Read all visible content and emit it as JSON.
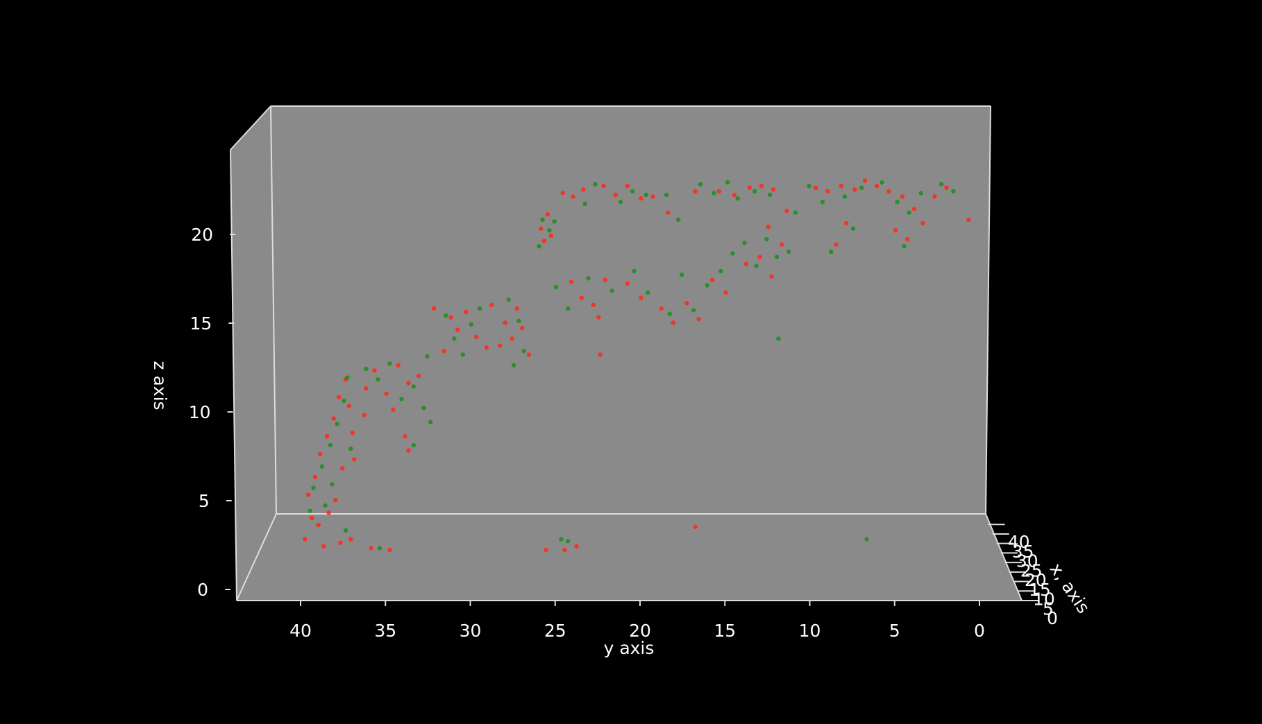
{
  "chart_data": {
    "type": "scatter",
    "projection": "3d",
    "title": "",
    "xlabel": "x, axis",
    "ylabel": "y axis",
    "zlabel": "z axis",
    "xlim": [
      0,
      43
    ],
    "ylim": [
      0,
      44
    ],
    "zlim": [
      0,
      24
    ],
    "x_ticks": [
      "0",
      "5",
      "10",
      "15",
      "20",
      "25",
      "30",
      "35",
      "40"
    ],
    "y_ticks": [
      "40",
      "35",
      "30",
      "25",
      "20",
      "15",
      "10",
      "5",
      "0"
    ],
    "z_ticks": [
      "0",
      "5",
      "10",
      "15",
      "20"
    ],
    "grid": false,
    "background": "#000000",
    "pane_color": "#8a8a8a",
    "edge_color": "#dddddd",
    "series": [
      {
        "color": "#ff2a1a",
        "points": [
          [
            20,
            39.2,
            5.5
          ],
          [
            20,
            38.8,
            6.5
          ],
          [
            20,
            38.5,
            7.8
          ],
          [
            20,
            38.1,
            8.8
          ],
          [
            20,
            37.7,
            9.8
          ],
          [
            20,
            37.4,
            11.0
          ],
          [
            20,
            37.0,
            12.0
          ],
          [
            20,
            36.8,
            10.5
          ],
          [
            20,
            37.2,
            7.0
          ],
          [
            20,
            37.6,
            5.2
          ],
          [
            20,
            38.0,
            4.5
          ],
          [
            20,
            38.6,
            3.8
          ],
          [
            20,
            39.0,
            4.2
          ],
          [
            20,
            36.6,
            9.0
          ],
          [
            20,
            36.5,
            7.5
          ],
          [
            20,
            39.4,
            3.0
          ],
          [
            20,
            38.3,
            2.6
          ],
          [
            20,
            37.3,
            2.8
          ],
          [
            20,
            36.7,
            3.0
          ],
          [
            20,
            35.5,
            2.5
          ],
          [
            20,
            34.4,
            2.4
          ],
          [
            20,
            35.8,
            11.5
          ],
          [
            20,
            35.3,
            12.5
          ],
          [
            20,
            34.6,
            11.2
          ],
          [
            20,
            33.9,
            12.8
          ],
          [
            20,
            33.3,
            11.8
          ],
          [
            20,
            32.7,
            12.2
          ],
          [
            20,
            34.2,
            10.3
          ],
          [
            20,
            33.5,
            8.8
          ],
          [
            20,
            35.9,
            10.0
          ],
          [
            20,
            30.8,
            15.5
          ],
          [
            20,
            30.4,
            14.8
          ],
          [
            20,
            29.9,
            15.8
          ],
          [
            20,
            29.3,
            14.4
          ],
          [
            20,
            31.2,
            13.6
          ],
          [
            20,
            28.7,
            13.8
          ],
          [
            20,
            27.6,
            15.2
          ],
          [
            20,
            27.2,
            14.3
          ],
          [
            20,
            26.9,
            16.0
          ],
          [
            20,
            26.6,
            14.9
          ],
          [
            20,
            27.9,
            13.9
          ],
          [
            20,
            26.2,
            13.4
          ],
          [
            20,
            25.5,
            20.5
          ],
          [
            20,
            25.1,
            21.3
          ],
          [
            20,
            24.9,
            20.1
          ],
          [
            20,
            25.3,
            19.8
          ],
          [
            20,
            24.2,
            22.5
          ],
          [
            20,
            23.6,
            22.3
          ],
          [
            20,
            23.0,
            22.7
          ],
          [
            20,
            21.8,
            22.9
          ],
          [
            20,
            21.1,
            22.4
          ],
          [
            20,
            20.4,
            22.9
          ],
          [
            20,
            19.6,
            22.2
          ],
          [
            20,
            18.9,
            22.3
          ],
          [
            20,
            18.0,
            21.4
          ],
          [
            20,
            16.4,
            22.6
          ],
          [
            20,
            15.0,
            22.6
          ],
          [
            20,
            14.1,
            22.4
          ],
          [
            20,
            13.2,
            22.8
          ],
          [
            20,
            12.5,
            22.9
          ],
          [
            20,
            11.8,
            22.7
          ],
          [
            20,
            11.0,
            21.5
          ],
          [
            20,
            9.3,
            22.8
          ],
          [
            20,
            8.6,
            22.6
          ],
          [
            20,
            7.8,
            22.9
          ],
          [
            20,
            7.0,
            22.7
          ],
          [
            20,
            6.4,
            23.2
          ],
          [
            20,
            5.7,
            22.9
          ],
          [
            20,
            5.0,
            22.6
          ],
          [
            20,
            4.2,
            22.3
          ],
          [
            20,
            3.5,
            21.6
          ],
          [
            20,
            3.0,
            20.8
          ],
          [
            20,
            2.3,
            22.3
          ],
          [
            20,
            1.6,
            22.8
          ],
          [
            20,
            0.3,
            21.0
          ],
          [
            20,
            4.6,
            20.4
          ],
          [
            20,
            3.9,
            19.9
          ],
          [
            20,
            7.5,
            20.8
          ],
          [
            20,
            8.1,
            19.6
          ],
          [
            20,
            23.7,
            17.5
          ],
          [
            20,
            23.1,
            16.6
          ],
          [
            20,
            22.4,
            16.2
          ],
          [
            20,
            21.7,
            17.6
          ],
          [
            20,
            20.4,
            17.4
          ],
          [
            20,
            19.6,
            16.6
          ],
          [
            20,
            18.4,
            16.0
          ],
          [
            20,
            17.7,
            15.2
          ],
          [
            20,
            16.9,
            16.3
          ],
          [
            20,
            16.2,
            15.4
          ],
          [
            20,
            15.4,
            17.6
          ],
          [
            20,
            14.6,
            16.9
          ],
          [
            20,
            13.4,
            18.5
          ],
          [
            20,
            12.6,
            18.9
          ],
          [
            20,
            11.9,
            17.8
          ],
          [
            20,
            11.3,
            19.6
          ],
          [
            20,
            12.1,
            20.6
          ],
          [
            20,
            22.1,
            15.5
          ],
          [
            20,
            22.0,
            13.4
          ],
          [
            20,
            24.1,
            2.4
          ],
          [
            20,
            23.4,
            2.6
          ],
          [
            20,
            25.2,
            2.4
          ],
          [
            20,
            16.4,
            3.7
          ],
          [
            20,
            33.3,
            8.0
          ],
          [
            20,
            31.8,
            16.0
          ],
          [
            20,
            28.4,
            16.2
          ]
        ]
      },
      {
        "color": "#1f8f1f",
        "points": [
          [
            20,
            38.9,
            5.9
          ],
          [
            20,
            38.4,
            7.1
          ],
          [
            20,
            37.9,
            8.3
          ],
          [
            20,
            37.5,
            9.5
          ],
          [
            20,
            37.1,
            10.8
          ],
          [
            20,
            36.9,
            12.1
          ],
          [
            20,
            38.2,
            4.9
          ],
          [
            20,
            37.8,
            6.1
          ],
          [
            20,
            36.7,
            8.1
          ],
          [
            20,
            39.1,
            4.6
          ],
          [
            20,
            37.0,
            3.5
          ],
          [
            20,
            35.8,
            12.6
          ],
          [
            20,
            35.1,
            12.0
          ],
          [
            20,
            34.4,
            12.9
          ],
          [
            20,
            33.7,
            10.9
          ],
          [
            20,
            33.0,
            11.6
          ],
          [
            20,
            32.4,
            10.4
          ],
          [
            20,
            32.0,
            9.6
          ],
          [
            20,
            32.2,
            13.3
          ],
          [
            20,
            33.0,
            8.3
          ],
          [
            20,
            31.1,
            15.6
          ],
          [
            20,
            30.6,
            14.3
          ],
          [
            20,
            29.6,
            15.1
          ],
          [
            20,
            29.1,
            16.0
          ],
          [
            20,
            30.1,
            13.4
          ],
          [
            20,
            27.4,
            16.5
          ],
          [
            20,
            26.8,
            15.3
          ],
          [
            20,
            26.5,
            13.6
          ],
          [
            20,
            25.4,
            21.0
          ],
          [
            20,
            25.0,
            20.4
          ],
          [
            20,
            25.6,
            19.5
          ],
          [
            20,
            24.7,
            20.9
          ],
          [
            20,
            22.9,
            21.9
          ],
          [
            20,
            22.3,
            23.0
          ],
          [
            20,
            20.8,
            22.0
          ],
          [
            20,
            20.1,
            22.6
          ],
          [
            20,
            19.3,
            22.4
          ],
          [
            20,
            18.1,
            22.4
          ],
          [
            20,
            17.4,
            21.0
          ],
          [
            20,
            16.1,
            23.0
          ],
          [
            20,
            15.3,
            22.5
          ],
          [
            20,
            14.5,
            23.1
          ],
          [
            20,
            13.9,
            22.2
          ],
          [
            20,
            12.9,
            22.6
          ],
          [
            20,
            12.0,
            22.4
          ],
          [
            20,
            10.5,
            21.4
          ],
          [
            20,
            9.7,
            22.9
          ],
          [
            20,
            8.9,
            22.0
          ],
          [
            20,
            7.6,
            22.3
          ],
          [
            20,
            6.6,
            22.8
          ],
          [
            20,
            5.4,
            23.1
          ],
          [
            20,
            4.5,
            22.0
          ],
          [
            20,
            3.8,
            21.4
          ],
          [
            20,
            3.1,
            22.5
          ],
          [
            20,
            1.9,
            23.0
          ],
          [
            20,
            1.2,
            22.6
          ],
          [
            20,
            8.4,
            19.2
          ],
          [
            20,
            7.1,
            20.5
          ],
          [
            20,
            4.1,
            19.5
          ],
          [
            20,
            24.6,
            17.2
          ],
          [
            20,
            23.9,
            16.0
          ],
          [
            20,
            22.7,
            17.7
          ],
          [
            20,
            21.3,
            17.0
          ],
          [
            20,
            20.0,
            18.1
          ],
          [
            20,
            19.2,
            16.9
          ],
          [
            20,
            17.9,
            15.7
          ],
          [
            20,
            17.2,
            17.9
          ],
          [
            20,
            16.5,
            15.9
          ],
          [
            20,
            15.7,
            17.3
          ],
          [
            20,
            14.9,
            18.1
          ],
          [
            20,
            14.2,
            19.1
          ],
          [
            20,
            13.5,
            19.7
          ],
          [
            20,
            12.8,
            18.4
          ],
          [
            20,
            12.2,
            19.9
          ],
          [
            20,
            11.6,
            18.9
          ],
          [
            20,
            10.9,
            19.2
          ],
          [
            20,
            11.5,
            14.3
          ],
          [
            20,
            24.3,
            3.0
          ],
          [
            20,
            23.9,
            2.9
          ],
          [
            20,
            6.3,
            3.0
          ],
          [
            20,
            35.0,
            2.5
          ],
          [
            20,
            27.1,
            12.8
          ]
        ]
      }
    ]
  }
}
